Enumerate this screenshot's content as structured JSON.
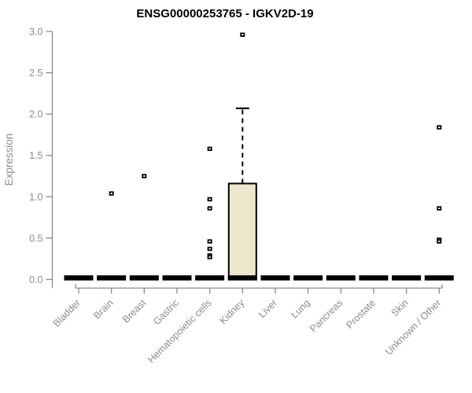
{
  "chart_data": {
    "type": "boxplot",
    "title": "ENSG00000253765 - IGKV2D-19",
    "ylabel": "Expression",
    "xlabel": "",
    "ylim": [
      0.0,
      3.0
    ],
    "ytick_labels": [
      "0.0",
      "0.5",
      "1.0",
      "1.5",
      "2.0",
      "2.5",
      "3.0"
    ],
    "grid": false,
    "legend": null,
    "categories": [
      "Bladder",
      "Brain",
      "Breast",
      "Gastric",
      "Hematopoietic cells",
      "Kidney",
      "Liver",
      "Lung",
      "Pancreas",
      "Prostate",
      "Skin",
      "Unknown / Other"
    ],
    "boxes": [
      {
        "category": "Bladder",
        "median": 0.0,
        "q1": 0.0,
        "q3": 0.0,
        "whisker_low": 0.0,
        "whisker_high": 0.0,
        "outliers": []
      },
      {
        "category": "Brain",
        "median": 0.0,
        "q1": 0.0,
        "q3": 0.0,
        "whisker_low": 0.0,
        "whisker_high": 0.0,
        "outliers": [
          1.04
        ]
      },
      {
        "category": "Breast",
        "median": 0.0,
        "q1": 0.0,
        "q3": 0.0,
        "whisker_low": 0.0,
        "whisker_high": 0.0,
        "outliers": [
          1.25
        ]
      },
      {
        "category": "Gastric",
        "median": 0.0,
        "q1": 0.0,
        "q3": 0.0,
        "whisker_low": 0.0,
        "whisker_high": 0.0,
        "outliers": []
      },
      {
        "category": "Hematopoietic cells",
        "median": 0.0,
        "q1": 0.0,
        "q3": 0.0,
        "whisker_low": 0.0,
        "whisker_high": 0.0,
        "outliers": [
          1.58,
          0.97,
          0.86,
          0.46,
          0.37,
          0.29,
          0.27
        ]
      },
      {
        "category": "Kidney",
        "median": 0.0,
        "q1": 0.0,
        "q3": 1.16,
        "whisker_low": 0.0,
        "whisker_high": 2.07,
        "outliers": [
          2.96
        ]
      },
      {
        "category": "Liver",
        "median": 0.0,
        "q1": 0.0,
        "q3": 0.0,
        "whisker_low": 0.0,
        "whisker_high": 0.0,
        "outliers": []
      },
      {
        "category": "Lung",
        "median": 0.0,
        "q1": 0.0,
        "q3": 0.0,
        "whisker_low": 0.0,
        "whisker_high": 0.0,
        "outliers": []
      },
      {
        "category": "Pancreas",
        "median": 0.0,
        "q1": 0.0,
        "q3": 0.0,
        "whisker_low": 0.0,
        "whisker_high": 0.0,
        "outliers": []
      },
      {
        "category": "Prostate",
        "median": 0.0,
        "q1": 0.0,
        "q3": 0.0,
        "whisker_low": 0.0,
        "whisker_high": 0.0,
        "outliers": []
      },
      {
        "category": "Skin",
        "median": 0.0,
        "q1": 0.0,
        "q3": 0.0,
        "whisker_low": 0.0,
        "whisker_high": 0.0,
        "outliers": []
      },
      {
        "category": "Unknown / Other",
        "median": 0.0,
        "q1": 0.0,
        "q3": 0.0,
        "whisker_low": 0.0,
        "whisker_high": 0.0,
        "outliers": [
          1.84,
          0.86,
          0.48,
          0.46
        ]
      }
    ],
    "colors": {
      "box_fill": "#ece7cc",
      "box_border": "#000000",
      "median": "#000000",
      "outlier": "#000000",
      "whisker": "#000000",
      "axis": "#8a8a8a",
      "tick_label": "#8c8c8c",
      "title": "#000000",
      "background": "#ffffff"
    }
  }
}
